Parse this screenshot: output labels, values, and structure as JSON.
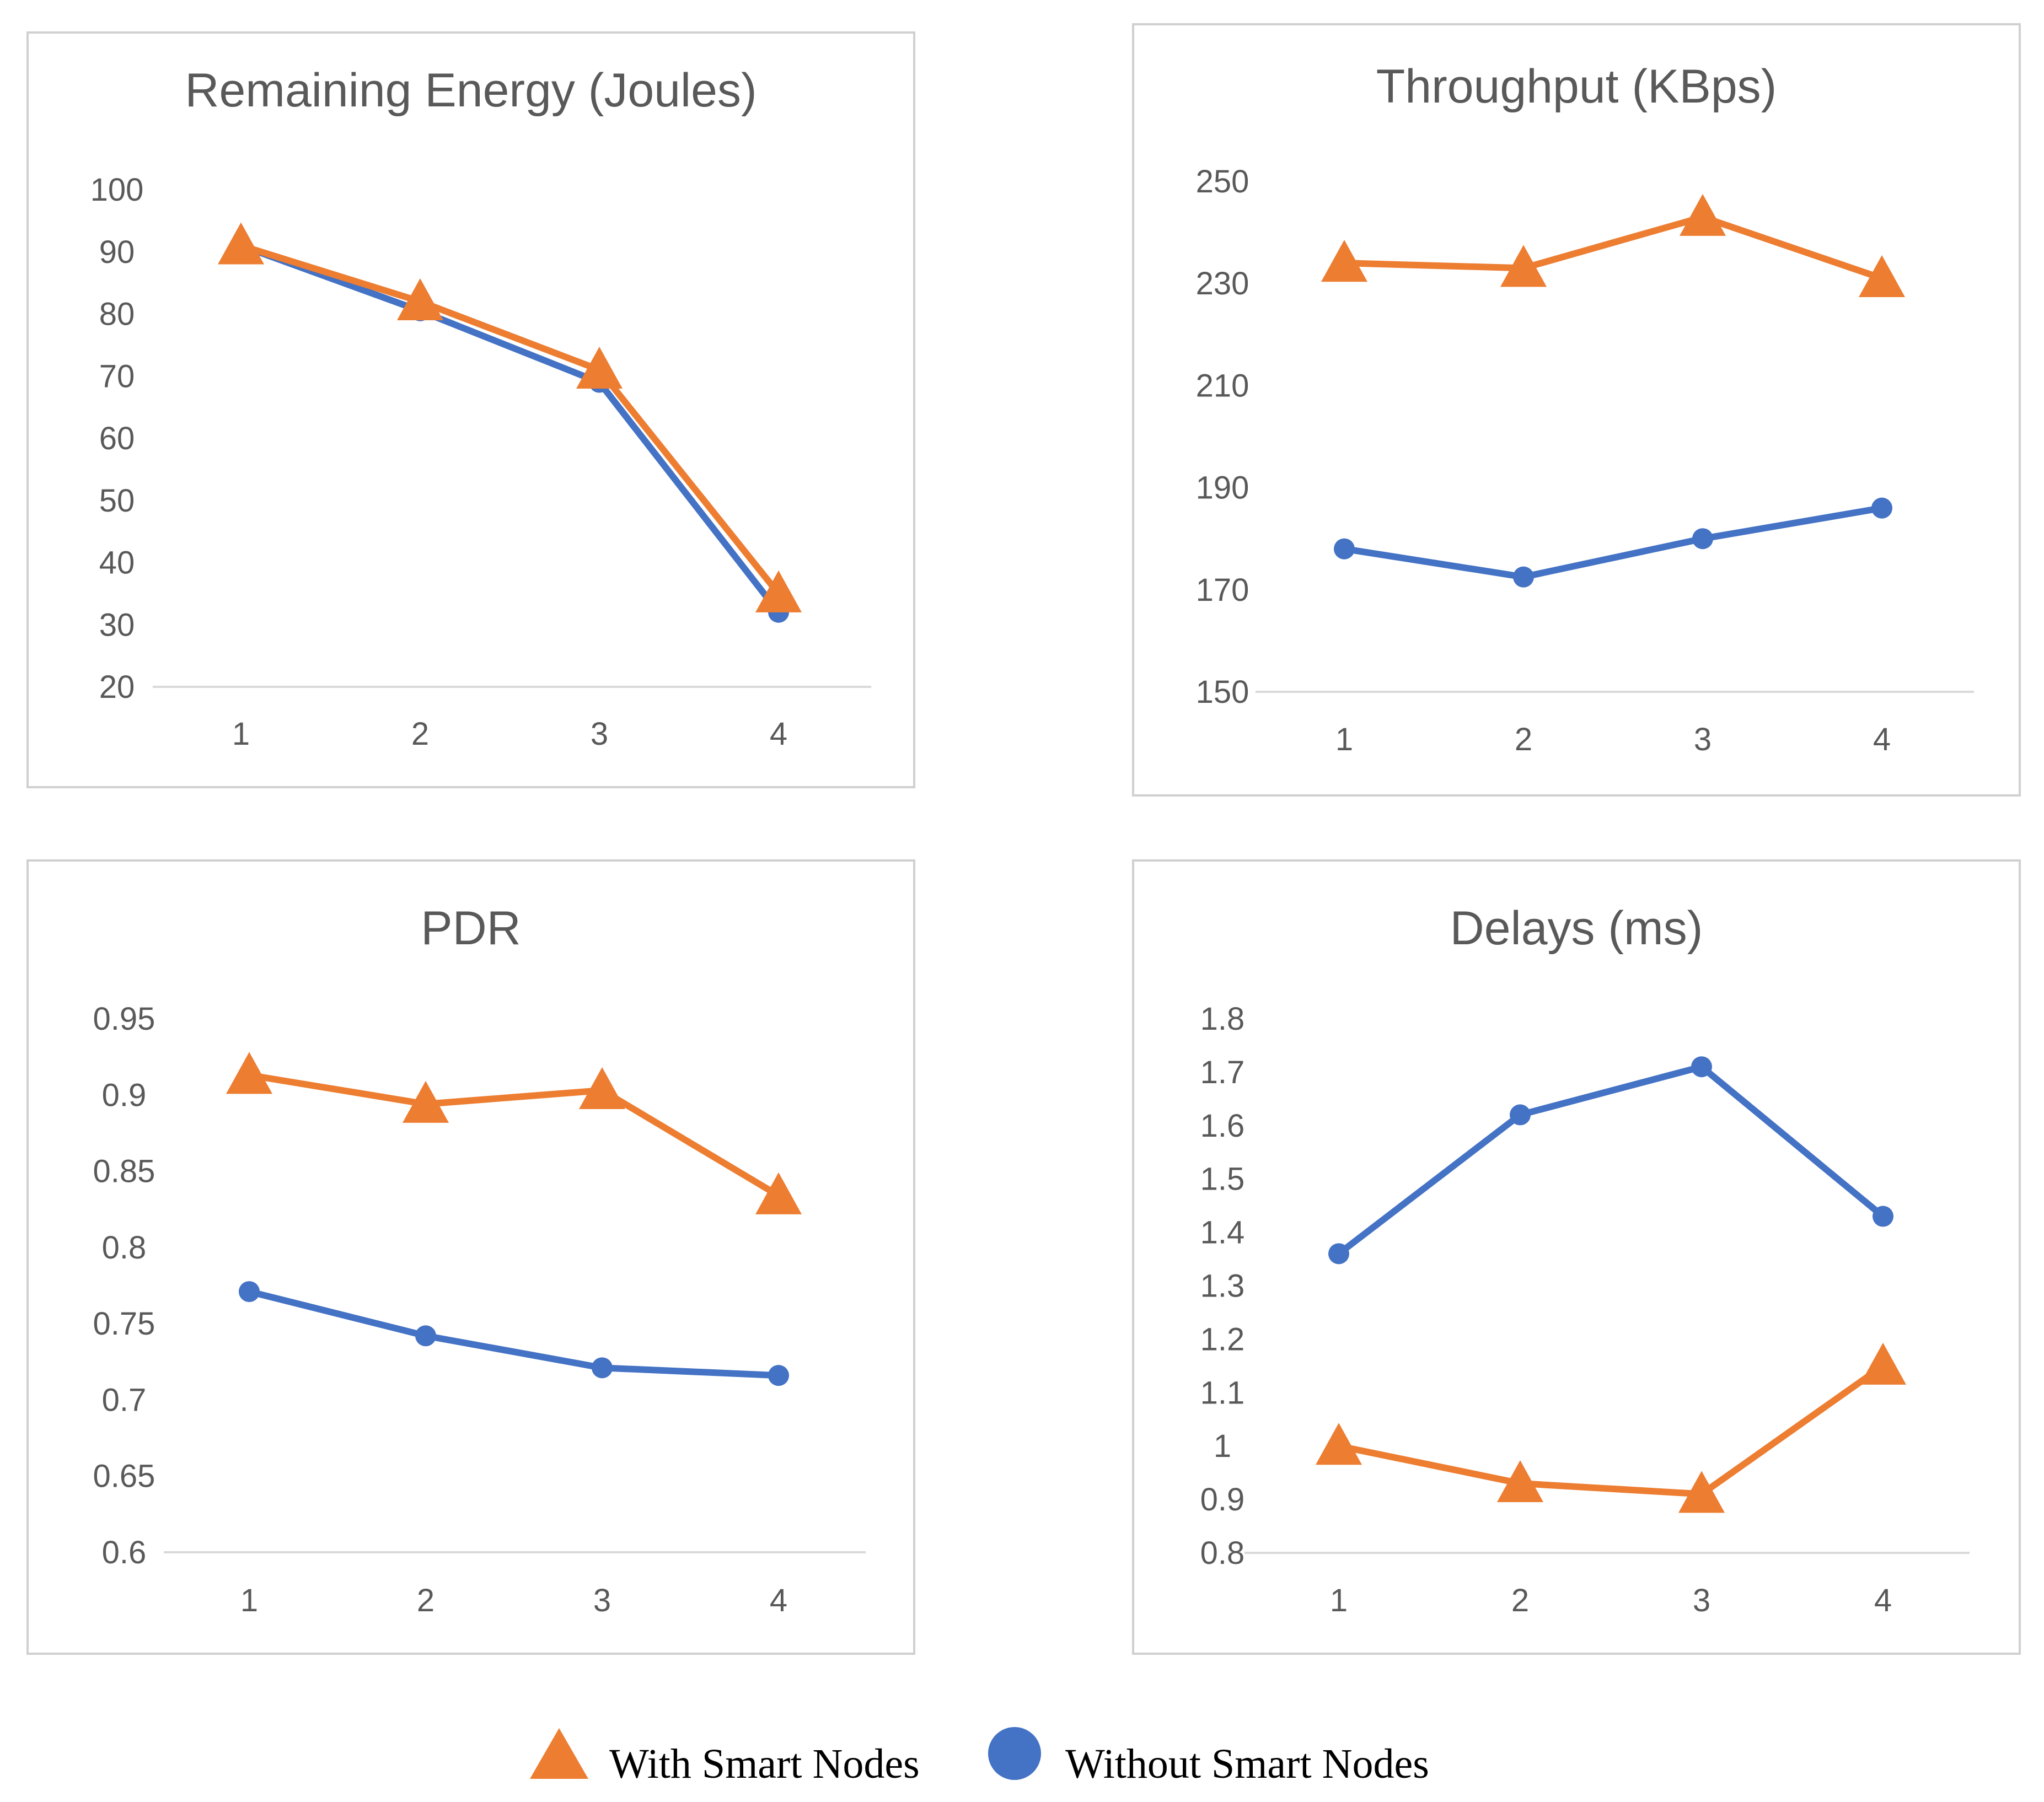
{
  "colors": {
    "with": "#ED7D31",
    "without": "#4472C4",
    "axis": "#d9d9d9",
    "text": "#595959"
  },
  "legend": [
    {
      "name": "With Smart Nodes",
      "marker": "triangle",
      "color": "#ED7D31"
    },
    {
      "name": "Without Smart Nodes",
      "marker": "circle",
      "color": "#4472C4"
    }
  ],
  "chart_data": [
    {
      "type": "line",
      "title": "Remaining Energy (Joules)",
      "categories": [
        "1",
        "2",
        "3",
        "4"
      ],
      "ylim": [
        20,
        100
      ],
      "yticks": [
        "20",
        "30",
        "40",
        "50",
        "60",
        "70",
        "80",
        "90",
        "100"
      ],
      "grid": false,
      "series": [
        {
          "name": "With Smart Nodes",
          "values": [
            91,
            82,
            71,
            35
          ]
        },
        {
          "name": "Without Smart Nodes",
          "values": [
            91,
            80.5,
            69,
            32
          ]
        }
      ]
    },
    {
      "type": "line",
      "title": "Throughput (KBps)",
      "categories": [
        "1",
        "2",
        "3",
        "4"
      ],
      "ylim": [
        150,
        250
      ],
      "yticks": [
        "150",
        "170",
        "190",
        "210",
        "230",
        "250"
      ],
      "grid": false,
      "series": [
        {
          "name": "With Smart Nodes",
          "values": [
            234,
            233,
            243,
            231
          ]
        },
        {
          "name": "Without Smart Nodes",
          "values": [
            178,
            172.5,
            180,
            186
          ]
        }
      ]
    },
    {
      "type": "line",
      "title": "PDR",
      "categories": [
        "1",
        "2",
        "3",
        "4"
      ],
      "ylim": [
        0.6,
        0.95
      ],
      "yticks": [
        "0.6",
        "0.65",
        "0.7",
        "0.75",
        "0.8",
        "0.85",
        "0.9",
        "0.95"
      ],
      "grid": false,
      "series": [
        {
          "name": "With Smart Nodes",
          "values": [
            0.913,
            0.894,
            0.903,
            0.834
          ]
        },
        {
          "name": "Without Smart Nodes",
          "values": [
            0.771,
            0.742,
            0.721,
            0.716
          ]
        }
      ]
    },
    {
      "type": "line",
      "title": "Delays (ms)",
      "categories": [
        "1",
        "2",
        "3",
        "4"
      ],
      "ylim": [
        0.8,
        1.8
      ],
      "yticks": [
        "0.8",
        "0.9",
        "1",
        "1.1",
        "1.2",
        "1.3",
        "1.4",
        "1.5",
        "1.6",
        "1.7",
        "1.8"
      ],
      "grid": false,
      "series": [
        {
          "name": "With Smart Nodes",
          "values": [
            1.0,
            0.93,
            0.91,
            1.15
          ]
        },
        {
          "name": "Without Smart Nodes",
          "values": [
            1.36,
            1.62,
            1.71,
            1.43
          ]
        }
      ]
    }
  ]
}
